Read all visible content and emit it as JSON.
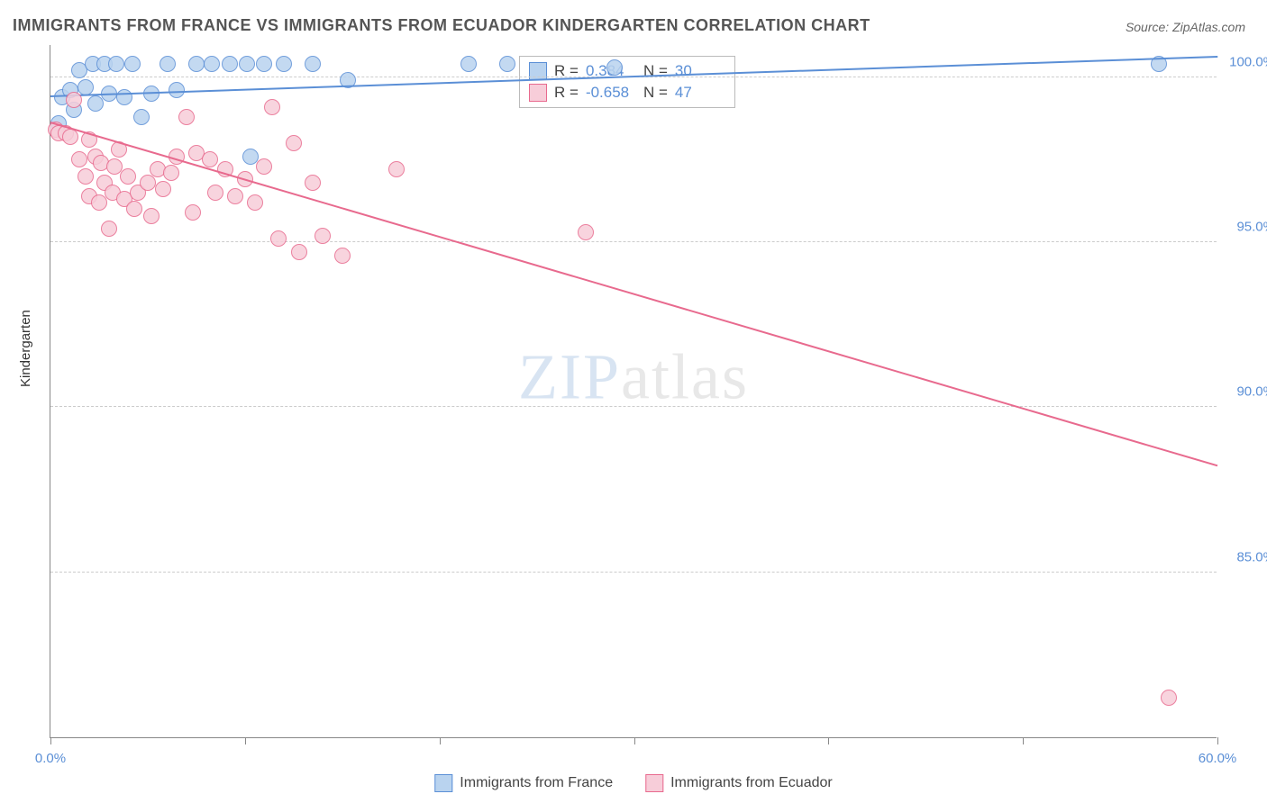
{
  "title": "IMMIGRANTS FROM FRANCE VS IMMIGRANTS FROM ECUADOR KINDERGARTEN CORRELATION CHART",
  "source_label": "Source:",
  "source_value": "ZipAtlas.com",
  "ylabel": "Kindergarten",
  "watermark_a": "ZIP",
  "watermark_b": "atlas",
  "chart": {
    "type": "scatter",
    "xlim": [
      0,
      60
    ],
    "ylim": [
      80,
      101
    ],
    "xtick_positions": [
      0,
      10,
      20,
      30,
      40,
      50,
      60
    ],
    "xtick_labels": [
      "0.0%",
      "",
      "",
      "",
      "",
      "",
      "60.0%"
    ],
    "ytick_positions": [
      85,
      90,
      95,
      100
    ],
    "ytick_labels": [
      "85.0%",
      "90.0%",
      "95.0%",
      "100.0%"
    ],
    "grid_color": "#cccccc",
    "background_color": "#ffffff",
    "marker_radius": 9,
    "marker_stroke_width": 1.5,
    "line_width": 2
  },
  "series": [
    {
      "name": "Immigrants from France",
      "fill": "#b9d3ef",
      "stroke": "#5b8fd6",
      "R": "0.384",
      "N": "30",
      "trend": {
        "x1": 0,
        "y1": 99.4,
        "x2": 60,
        "y2": 100.6
      },
      "points": [
        {
          "x": 0.4,
          "y": 98.6
        },
        {
          "x": 0.6,
          "y": 99.4
        },
        {
          "x": 1.0,
          "y": 99.6
        },
        {
          "x": 1.2,
          "y": 99.0
        },
        {
          "x": 1.5,
          "y": 100.2
        },
        {
          "x": 1.8,
          "y": 99.7
        },
        {
          "x": 2.2,
          "y": 100.4
        },
        {
          "x": 2.3,
          "y": 99.2
        },
        {
          "x": 2.8,
          "y": 100.4
        },
        {
          "x": 3.0,
          "y": 99.5
        },
        {
          "x": 3.4,
          "y": 100.4
        },
        {
          "x": 3.8,
          "y": 99.4
        },
        {
          "x": 4.2,
          "y": 100.4
        },
        {
          "x": 4.7,
          "y": 98.8
        },
        {
          "x": 5.2,
          "y": 99.5
        },
        {
          "x": 6.0,
          "y": 100.4
        },
        {
          "x": 6.5,
          "y": 99.6
        },
        {
          "x": 7.5,
          "y": 100.4
        },
        {
          "x": 8.3,
          "y": 100.4
        },
        {
          "x": 9.2,
          "y": 100.4
        },
        {
          "x": 10.1,
          "y": 100.4
        },
        {
          "x": 10.3,
          "y": 97.6
        },
        {
          "x": 11.0,
          "y": 100.4
        },
        {
          "x": 12.0,
          "y": 100.4
        },
        {
          "x": 13.5,
          "y": 100.4
        },
        {
          "x": 15.3,
          "y": 99.9
        },
        {
          "x": 21.5,
          "y": 100.4
        },
        {
          "x": 23.5,
          "y": 100.4
        },
        {
          "x": 29.0,
          "y": 100.3
        },
        {
          "x": 57.0,
          "y": 100.4
        }
      ]
    },
    {
      "name": "Immigrants from Ecuador",
      "fill": "#f7cdd9",
      "stroke": "#e86a8e",
      "R": "-0.658",
      "N": "47",
      "trend": {
        "x1": 0,
        "y1": 98.6,
        "x2": 60,
        "y2": 88.2
      },
      "points": [
        {
          "x": 0.3,
          "y": 98.4
        },
        {
          "x": 0.4,
          "y": 98.3
        },
        {
          "x": 0.8,
          "y": 98.3
        },
        {
          "x": 1.0,
          "y": 98.2
        },
        {
          "x": 1.2,
          "y": 99.3
        },
        {
          "x": 1.5,
          "y": 97.5
        },
        {
          "x": 1.8,
          "y": 97.0
        },
        {
          "x": 2.0,
          "y": 96.4
        },
        {
          "x": 2.0,
          "y": 98.1
        },
        {
          "x": 2.3,
          "y": 97.6
        },
        {
          "x": 2.5,
          "y": 96.2
        },
        {
          "x": 2.6,
          "y": 97.4
        },
        {
          "x": 2.8,
          "y": 96.8
        },
        {
          "x": 3.0,
          "y": 95.4
        },
        {
          "x": 3.2,
          "y": 96.5
        },
        {
          "x": 3.3,
          "y": 97.3
        },
        {
          "x": 3.5,
          "y": 97.8
        },
        {
          "x": 3.8,
          "y": 96.3
        },
        {
          "x": 4.0,
          "y": 97.0
        },
        {
          "x": 4.3,
          "y": 96.0
        },
        {
          "x": 4.5,
          "y": 96.5
        },
        {
          "x": 5.0,
          "y": 96.8
        },
        {
          "x": 5.2,
          "y": 95.8
        },
        {
          "x": 5.5,
          "y": 97.2
        },
        {
          "x": 5.8,
          "y": 96.6
        },
        {
          "x": 6.2,
          "y": 97.1
        },
        {
          "x": 6.5,
          "y": 97.6
        },
        {
          "x": 7.0,
          "y": 98.8
        },
        {
          "x": 7.3,
          "y": 95.9
        },
        {
          "x": 7.5,
          "y": 97.7
        },
        {
          "x": 8.2,
          "y": 97.5
        },
        {
          "x": 8.5,
          "y": 96.5
        },
        {
          "x": 9.0,
          "y": 97.2
        },
        {
          "x": 9.5,
          "y": 96.4
        },
        {
          "x": 10.0,
          "y": 96.9
        },
        {
          "x": 10.5,
          "y": 96.2
        },
        {
          "x": 11.4,
          "y": 99.1
        },
        {
          "x": 11.0,
          "y": 97.3
        },
        {
          "x": 11.7,
          "y": 95.1
        },
        {
          "x": 12.5,
          "y": 98.0
        },
        {
          "x": 12.8,
          "y": 94.7
        },
        {
          "x": 13.5,
          "y": 96.8
        },
        {
          "x": 14.0,
          "y": 95.2
        },
        {
          "x": 15.0,
          "y": 94.6
        },
        {
          "x": 17.8,
          "y": 97.2
        },
        {
          "x": 27.5,
          "y": 95.3
        },
        {
          "x": 57.5,
          "y": 81.2
        }
      ]
    }
  ],
  "legend": {
    "r_label": "R =",
    "n_label": "N ="
  },
  "bottom_legend": [
    {
      "label": "Immigrants from France",
      "fill": "#b9d3ef",
      "stroke": "#5b8fd6"
    },
    {
      "label": "Immigrants from Ecuador",
      "fill": "#f7cdd9",
      "stroke": "#e86a8e"
    }
  ]
}
